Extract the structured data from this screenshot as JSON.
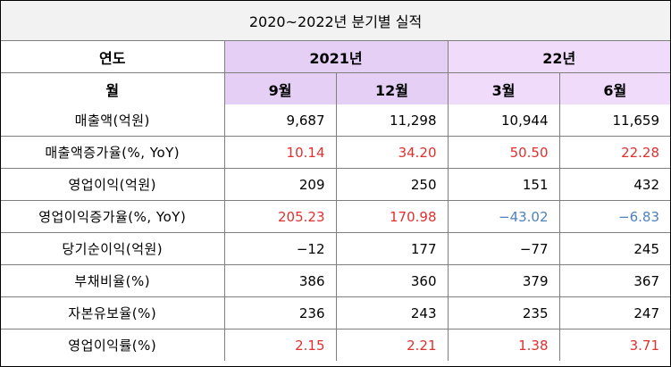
{
  "title": "2020~2022년 분기별 실적",
  "header": {
    "year_label": "연도",
    "year_2021": "2021년",
    "year_22": "22년",
    "month_label": "월",
    "months": [
      "9월",
      "12월",
      "3월",
      "6월"
    ]
  },
  "colors": {
    "header_2021": "#e6cff5",
    "header_22": "#f0dcfa",
    "negative_text": "#e03030",
    "positive_text_blue": "#4f81bd"
  },
  "rows": [
    {
      "label": "매출액(억원)",
      "values": [
        "9,687",
        "11,298",
        "10,944",
        "11,659"
      ],
      "color": [
        "",
        "",
        "",
        ""
      ]
    },
    {
      "label": "매출액증가율(%, YoY)",
      "values": [
        "10.14",
        "34.20",
        "50.50",
        "22.28"
      ],
      "color": [
        "red",
        "red",
        "red",
        "red"
      ]
    },
    {
      "label": "영업이익(억원)",
      "values": [
        "209",
        "250",
        "151",
        "432"
      ],
      "color": [
        "",
        "",
        "",
        ""
      ]
    },
    {
      "label": "영업이익증가율(%, YoY)",
      "values": [
        "205.23",
        "170.98",
        "−43.02",
        "−6.83"
      ],
      "color": [
        "red",
        "red",
        "blue",
        "blue"
      ]
    },
    {
      "label": "당기순이익(억원)",
      "values": [
        "−12",
        "177",
        "−77",
        "245"
      ],
      "color": [
        "",
        "",
        "",
        ""
      ]
    },
    {
      "label": "부채비율(%)",
      "values": [
        "386",
        "360",
        "379",
        "367"
      ],
      "color": [
        "",
        "",
        "",
        ""
      ]
    },
    {
      "label": "자본유보율(%)",
      "values": [
        "236",
        "243",
        "235",
        "247"
      ],
      "color": [
        "",
        "",
        "",
        ""
      ]
    },
    {
      "label": "영업이익률(%)",
      "values": [
        "2.15",
        "2.21",
        "1.38",
        "3.71"
      ],
      "color": [
        "red",
        "red",
        "red",
        "red"
      ]
    }
  ]
}
